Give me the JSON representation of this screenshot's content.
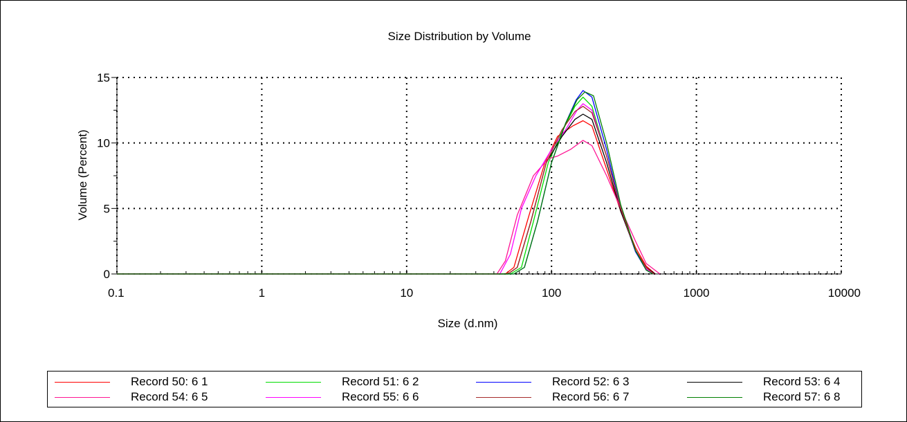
{
  "chart_data": {
    "type": "line",
    "title": "Size Distribution by Volume",
    "xlabel": "Size (d.nm)",
    "ylabel": "Volume (Percent)",
    "xscale": "log",
    "xlim": [
      0.1,
      10000
    ],
    "ylim": [
      0,
      15
    ],
    "xticks": [
      "0.1",
      "1",
      "10",
      "100",
      "1000",
      "10000"
    ],
    "yticks": [
      "0",
      "5",
      "10",
      "15"
    ],
    "grid": true,
    "legend_position": "bottom",
    "series": [
      {
        "name": "Record 50: 6 1",
        "color": "#ff0000",
        "points": [
          [
            0.1,
            0
          ],
          [
            48,
            0
          ],
          [
            55,
            0.5
          ],
          [
            70,
            4.5
          ],
          [
            90,
            8.5
          ],
          [
            110,
            10.5
          ],
          [
            140,
            11.3
          ],
          [
            165,
            11.7
          ],
          [
            190,
            11.3
          ],
          [
            240,
            8.0
          ],
          [
            300,
            4.8
          ],
          [
            380,
            2.0
          ],
          [
            450,
            0.6
          ],
          [
            520,
            0
          ]
        ]
      },
      {
        "name": "Record 51: 6 2",
        "color": "#00dd00",
        "points": [
          [
            0.1,
            0
          ],
          [
            52,
            0
          ],
          [
            62,
            0.5
          ],
          [
            75,
            4.0
          ],
          [
            95,
            8.5
          ],
          [
            120,
            11.0
          ],
          [
            145,
            12.8
          ],
          [
            165,
            13.5
          ],
          [
            190,
            12.8
          ],
          [
            240,
            9.0
          ],
          [
            300,
            5.0
          ],
          [
            380,
            1.7
          ],
          [
            450,
            0.4
          ],
          [
            500,
            0
          ]
        ]
      },
      {
        "name": "Record 52: 6 3",
        "color": "#0000ff",
        "points": [
          [
            0.1,
            0
          ],
          [
            55,
            0
          ],
          [
            65,
            0.5
          ],
          [
            80,
            4.0
          ],
          [
            100,
            8.5
          ],
          [
            125,
            11.5
          ],
          [
            148,
            13.3
          ],
          [
            165,
            14.0
          ],
          [
            190,
            13.5
          ],
          [
            240,
            9.5
          ],
          [
            300,
            5.0
          ],
          [
            380,
            1.7
          ],
          [
            450,
            0.3
          ],
          [
            500,
            0
          ]
        ]
      },
      {
        "name": "Record 53: 6 4",
        "color": "#000000",
        "points": [
          [
            0.1,
            0
          ],
          [
            50,
            0
          ],
          [
            58,
            0.5
          ],
          [
            72,
            4.0
          ],
          [
            92,
            8.5
          ],
          [
            118,
            10.5
          ],
          [
            145,
            11.8
          ],
          [
            165,
            12.2
          ],
          [
            190,
            11.8
          ],
          [
            240,
            8.5
          ],
          [
            300,
            4.8
          ],
          [
            380,
            1.8
          ],
          [
            450,
            0.5
          ],
          [
            520,
            0
          ]
        ]
      },
      {
        "name": "Record 54: 6 5",
        "color": "#ff1493",
        "points": [
          [
            0.1,
            0
          ],
          [
            42,
            0
          ],
          [
            48,
            1.0
          ],
          [
            58,
            4.5
          ],
          [
            75,
            7.5
          ],
          [
            95,
            8.8
          ],
          [
            110,
            9.0
          ],
          [
            135,
            9.5
          ],
          [
            165,
            10.2
          ],
          [
            190,
            9.8
          ],
          [
            240,
            7.5
          ],
          [
            300,
            5.0
          ],
          [
            380,
            2.5
          ],
          [
            450,
            0.8
          ],
          [
            560,
            0
          ]
        ]
      },
      {
        "name": "Record 55: 6 6",
        "color": "#ff00ff",
        "points": [
          [
            0.1,
            0
          ],
          [
            44,
            0
          ],
          [
            52,
            1.5
          ],
          [
            62,
            5.0
          ],
          [
            78,
            7.5
          ],
          [
            100,
            9.5
          ],
          [
            125,
            11.0
          ],
          [
            150,
            12.5
          ],
          [
            165,
            13.0
          ],
          [
            190,
            12.5
          ],
          [
            240,
            9.0
          ],
          [
            300,
            5.0
          ],
          [
            380,
            1.8
          ],
          [
            450,
            0.4
          ],
          [
            510,
            0
          ]
        ]
      },
      {
        "name": "Record 56: 6 7",
        "color": "#a52a2a",
        "points": [
          [
            0.1,
            0
          ],
          [
            50,
            0
          ],
          [
            58,
            0.5
          ],
          [
            72,
            4.0
          ],
          [
            92,
            8.5
          ],
          [
            118,
            11.0
          ],
          [
            145,
            12.4
          ],
          [
            165,
            12.8
          ],
          [
            190,
            12.3
          ],
          [
            240,
            9.0
          ],
          [
            300,
            5.0
          ],
          [
            380,
            1.8
          ],
          [
            450,
            0.5
          ],
          [
            510,
            0
          ]
        ]
      },
      {
        "name": "Record 57: 6 8",
        "color": "#008000",
        "points": [
          [
            0.1,
            0
          ],
          [
            55,
            0
          ],
          [
            65,
            0.5
          ],
          [
            80,
            4.0
          ],
          [
            100,
            8.5
          ],
          [
            125,
            11.5
          ],
          [
            150,
            13.3
          ],
          [
            170,
            13.9
          ],
          [
            195,
            13.6
          ],
          [
            240,
            10.0
          ],
          [
            300,
            5.3
          ],
          [
            380,
            1.8
          ],
          [
            450,
            0.3
          ],
          [
            500,
            0
          ]
        ]
      }
    ]
  }
}
